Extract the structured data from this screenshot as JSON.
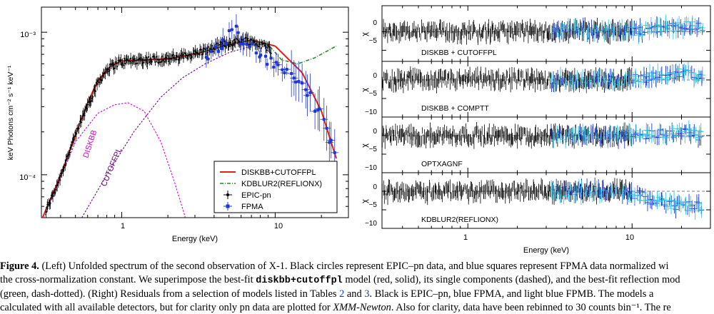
{
  "left_panel": {
    "chart_data": {
      "type": "scatter",
      "xlabel": "Energy (keV)",
      "ylabel": "keV Photons cm⁻² s⁻¹ keV⁻¹",
      "x_scale": "log",
      "y_scale": "log",
      "xlim": [
        0.3,
        30
      ],
      "ylim": [
        5e-05,
        0.0015
      ],
      "x_tick_labels": [
        "1",
        "10"
      ],
      "y_tick_labels": [
        "10⁻⁴",
        "10⁻³"
      ],
      "legend_position": "lower-right",
      "series": [
        {
          "name": "DISKBB+CUTOFFPL",
          "style": "solid",
          "color": "#e0201a",
          "x": [
            0.3,
            0.4,
            0.5,
            0.6,
            0.7,
            0.85,
            1.0,
            1.5,
            2,
            3,
            5,
            7,
            10,
            15,
            20,
            25
          ],
          "y": [
            4.8e-05,
            9.8e-05,
            0.00019,
            0.00032,
            0.00046,
            0.00058,
            0.00063,
            0.00064,
            0.00065,
            0.0007,
            0.00082,
            0.00088,
            0.0008,
            0.00052,
            0.00028,
            0.00013
          ]
        },
        {
          "name": "KDBLUR2(REFLIONX)",
          "style": "dash-dot",
          "color": "#2a8a2a",
          "x": [
            3,
            5,
            7,
            9,
            11,
            14,
            18,
            25
          ],
          "y": [
            0.0007,
            0.00082,
            0.00088,
            0.00082,
            0.00064,
            0.0006,
            0.00066,
            0.0008
          ]
        },
        {
          "name": "EPIC-pn",
          "marker": "circle",
          "color": "#000000",
          "x": [
            0.32,
            0.38,
            0.45,
            0.52,
            0.6,
            0.7,
            0.8,
            0.95,
            1.1,
            1.4,
            1.8,
            2.3,
            3,
            3.8,
            4.6,
            5.5,
            6.5,
            7.5,
            8.5,
            9.5
          ],
          "y": [
            5.5e-05,
            8.5e-05,
            0.00014,
            0.00021,
            0.00031,
            0.00044,
            0.00055,
            0.00061,
            0.00063,
            0.00064,
            0.00065,
            0.00066,
            0.00071,
            0.00076,
            0.00082,
            0.00086,
            0.00088,
            0.00084,
            0.0008,
            0.00075
          ]
        },
        {
          "name": "FPMA",
          "marker": "square",
          "color": "#1f35d6",
          "x": [
            3.5,
            4.2,
            5.0,
            5.5,
            6.0,
            7.0,
            8.0,
            9.0,
            10.5,
            12.0,
            13.5,
            15.0,
            17.0,
            20.0,
            25.0
          ],
          "y": [
            0.0007,
            0.00075,
            0.00095,
            0.0012,
            0.0008,
            0.00083,
            0.0007,
            0.00062,
            0.00058,
            0.00052,
            0.00048,
            0.00042,
            0.00035,
            0.00025,
            0.00014
          ]
        },
        {
          "name": "DISKBB",
          "style": "dashed",
          "color": "#d400d4",
          "x": [
            0.3,
            0.5,
            0.7,
            0.9,
            1.1,
            1.4,
            1.8,
            2.2,
            2.6
          ],
          "y": [
            4.5e-05,
            0.00017,
            0.00027,
            0.00031,
            0.00032,
            0.00028,
            0.00017,
            9e-05,
            5e-05
          ]
        },
        {
          "name": "CUTOFFPL",
          "style": "dashed",
          "color": "#6a0080",
          "x": [
            0.55,
            0.8,
            1.2,
            1.8,
            2.5,
            3.5,
            5,
            7
          ],
          "y": [
            5e-05,
            0.0001,
            0.0002,
            0.00035,
            0.00048,
            0.0006,
            0.00072,
            0.0008
          ]
        }
      ],
      "annotations": [
        "DISKBB",
        "CUTOFFPL"
      ]
    },
    "legend": {
      "items": [
        "DISKBB+CUTOFFPL",
        "KDBLUR2(REFLIONX)",
        "EPIC-pn",
        "FPMA"
      ]
    }
  },
  "right_panel": {
    "chart_data": [
      {
        "type": "scatter",
        "title": "DISKBB + CUTOFFPL",
        "ylabel": "χ",
        "ylim": [
          -8,
          7
        ],
        "y_tick_labels": [
          "0",
          "−5"
        ],
        "x": [
          0.3,
          1,
          3,
          5,
          8,
          10,
          15,
          20,
          25
        ],
        "y": [
          0,
          0,
          0,
          0.5,
          0,
          0,
          1,
          1.5,
          1.5
        ],
        "colors": {
          "EPIC-pn": "#000000",
          "FPMA": "#1f35d6",
          "FPMB": "#35c6e0"
        }
      },
      {
        "type": "scatter",
        "title": "DISKBB + COMPTT",
        "ylabel": "χ",
        "ylim": [
          -10,
          5
        ],
        "y_tick_labels": [
          "0",
          "−5",
          "−10"
        ],
        "x": [
          0.3,
          1,
          3,
          5,
          8,
          10,
          15,
          20,
          25
        ],
        "y": [
          0,
          0,
          0,
          0,
          0,
          0,
          1,
          2,
          1
        ]
      },
      {
        "type": "scatter",
        "title": "OPTXAGNF",
        "ylabel": "χ",
        "ylim": [
          -10,
          5
        ],
        "y_tick_labels": [
          "0",
          "−5",
          "−10"
        ],
        "x": [
          0.3,
          1,
          3,
          5,
          8,
          10,
          15,
          20,
          25
        ],
        "y": [
          0,
          0,
          0,
          0,
          0,
          0,
          0.5,
          1,
          0
        ]
      },
      {
        "type": "scatter",
        "title": "KDBLUR2(REFLIONX)",
        "ylabel": "χ",
        "ylim": [
          -10,
          5
        ],
        "y_tick_labels": [
          "0",
          "−5",
          "−10"
        ],
        "x": [
          0.3,
          1,
          3,
          5,
          8,
          10,
          15,
          20,
          25
        ],
        "y": [
          0,
          0,
          0,
          0,
          0,
          -0.5,
          -3,
          -4,
          -4
        ]
      }
    ],
    "x_tick_labels": [
      "1",
      "10"
    ],
    "xlabel": "Energy (keV)",
    "dashed_zero_line": true
  },
  "caption": {
    "label": "Figure 4.",
    "line1_a": "(Left) Unfolded spectrum of the second observation of X-1. Black circles represent EPIC–pn data, and blue squares represent FPMA data normalized wi",
    "line2_a": "the cross-normalization constant. We superimpose the best-fit ",
    "line2_code": "diskbb+cutoffpl",
    "line2_b": " model (red, solid), its single components (dashed), and the best-fit reflection mod",
    "line3_a": "(green, dash-dotted). (Right) Residuals from a selection of models listed in Tables ",
    "line3_ref1": "2",
    "line3_and": " and ",
    "line3_ref2": "3",
    "line3_b": ". Black is EPIC–pn, blue FPMA, and light blue FPMB. The models a",
    "line4_a": "calculated with all available detectors, but for clarity only pn data are plotted for ",
    "line4_em": "XMM-Newton",
    "line4_b": ". Also for clarity, data have been rebinned to 30 counts bin⁻¹. The re"
  }
}
